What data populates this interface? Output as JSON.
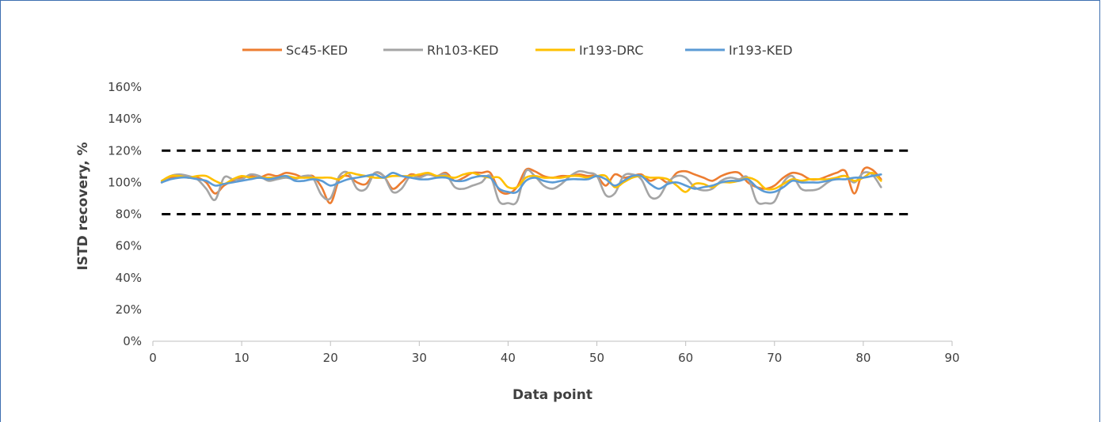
{
  "chart_data": {
    "type": "line",
    "title": "",
    "xlabel": "Data point",
    "ylabel": "ISTD recovery, %",
    "xlim": [
      0,
      90
    ],
    "ylim": [
      0,
      160
    ],
    "xticks": [
      0,
      10,
      20,
      30,
      40,
      50,
      60,
      70,
      80,
      90
    ],
    "yticks": [
      0,
      20,
      40,
      60,
      80,
      100,
      120,
      140,
      160
    ],
    "ytick_format": "percent",
    "grid": false,
    "legend": "top",
    "x": [
      1,
      2,
      3,
      4,
      5,
      6,
      7,
      8,
      9,
      10,
      11,
      12,
      13,
      14,
      15,
      16,
      17,
      18,
      19,
      20,
      21,
      22,
      23,
      24,
      25,
      26,
      27,
      28,
      29,
      30,
      31,
      32,
      33,
      34,
      35,
      36,
      37,
      38,
      39,
      40,
      41,
      42,
      43,
      44,
      45,
      46,
      47,
      48,
      49,
      50,
      51,
      52,
      53,
      54,
      55,
      56,
      57,
      58,
      59,
      60,
      61,
      62,
      63,
      64,
      65,
      66,
      67,
      68,
      69,
      70,
      71,
      72,
      73,
      74,
      75,
      76,
      77,
      78,
      79,
      80,
      81,
      82
    ],
    "series": [
      {
        "name": "Sc45-KED",
        "color": "#ED7D31",
        "values": [
          100,
          103,
          104,
          103,
          103,
          100,
          93,
          98,
          101,
          103,
          104,
          103,
          105,
          104,
          106,
          105,
          103,
          104,
          97,
          87,
          102,
          104,
          100,
          99,
          106,
          104,
          96,
          100,
          105,
          104,
          105,
          104,
          106,
          101,
          103,
          106,
          106,
          106,
          95,
          93,
          97,
          108,
          107,
          104,
          103,
          104,
          104,
          105,
          104,
          104,
          98,
          105,
          103,
          104,
          105,
          101,
          103,
          100,
          106,
          107,
          105,
          103,
          101,
          104,
          106,
          106,
          100,
          97,
          96,
          98,
          103,
          106,
          105,
          102,
          102,
          104,
          106,
          107,
          93,
          108,
          108,
          102
        ]
      },
      {
        "name": "Rh103-KED",
        "color": "#A5A5A5",
        "values": [
          100,
          104,
          105,
          104,
          102,
          96,
          89,
          103,
          102,
          102,
          105,
          104,
          101,
          102,
          103,
          102,
          104,
          103,
          92,
          90,
          104,
          106,
          96,
          96,
          106,
          104,
          94,
          96,
          104,
          103,
          105,
          104,
          105,
          97,
          96,
          98,
          100,
          104,
          88,
          87,
          88,
          107,
          104,
          98,
          96,
          99,
          104,
          107,
          106,
          104,
          92,
          93,
          104,
          105,
          102,
          91,
          91,
          100,
          104,
          103,
          97,
          95,
          96,
          101,
          103,
          102,
          103,
          88,
          87,
          88,
          100,
          104,
          96,
          95,
          96,
          100,
          103,
          104,
          100,
          106,
          105,
          97
        ]
      },
      {
        "name": "Ir193-DRC",
        "color": "#FFC000",
        "values": [
          101,
          104,
          104,
          103,
          104,
          104,
          101,
          99,
          102,
          104,
          103,
          103,
          103,
          103,
          104,
          103,
          103,
          103,
          103,
          103,
          102,
          106,
          105,
          104,
          103,
          103,
          104,
          104,
          104,
          105,
          106,
          104,
          104,
          103,
          105,
          106,
          104,
          103,
          103,
          97,
          97,
          103,
          104,
          103,
          103,
          103,
          104,
          104,
          103,
          104,
          104,
          97,
          100,
          103,
          104,
          103,
          103,
          102,
          98,
          94,
          99,
          99,
          97,
          100,
          100,
          101,
          103,
          101,
          96,
          96,
          99,
          102,
          101,
          102,
          102,
          102,
          103,
          104,
          101,
          103,
          106,
          101
        ]
      },
      {
        "name": "Ir193-KED",
        "color": "#5B9BD5",
        "values": [
          100,
          102,
          103,
          103,
          102,
          101,
          98,
          99,
          100,
          101,
          102,
          103,
          102,
          103,
          104,
          101,
          101,
          102,
          101,
          98,
          100,
          102,
          103,
          104,
          105,
          103,
          106,
          104,
          103,
          102,
          102,
          103,
          103,
          101,
          101,
          103,
          104,
          103,
          96,
          94,
          94,
          101,
          103,
          101,
          100,
          101,
          102,
          102,
          102,
          104,
          102,
          98,
          101,
          104,
          104,
          99,
          96,
          99,
          100,
          98,
          96,
          97,
          98,
          100,
          101,
          101,
          102,
          97,
          94,
          94,
          97,
          101,
          100,
          100,
          100,
          101,
          102,
          102,
          103,
          103,
          104,
          105
        ]
      }
    ],
    "reference_lines": [
      {
        "y": 120,
        "style": "dashed",
        "color": "#000000"
      },
      {
        "y": 80,
        "style": "dashed",
        "color": "#000000"
      }
    ],
    "axis_color": "#bfbfbf",
    "text_color": "#404040"
  }
}
